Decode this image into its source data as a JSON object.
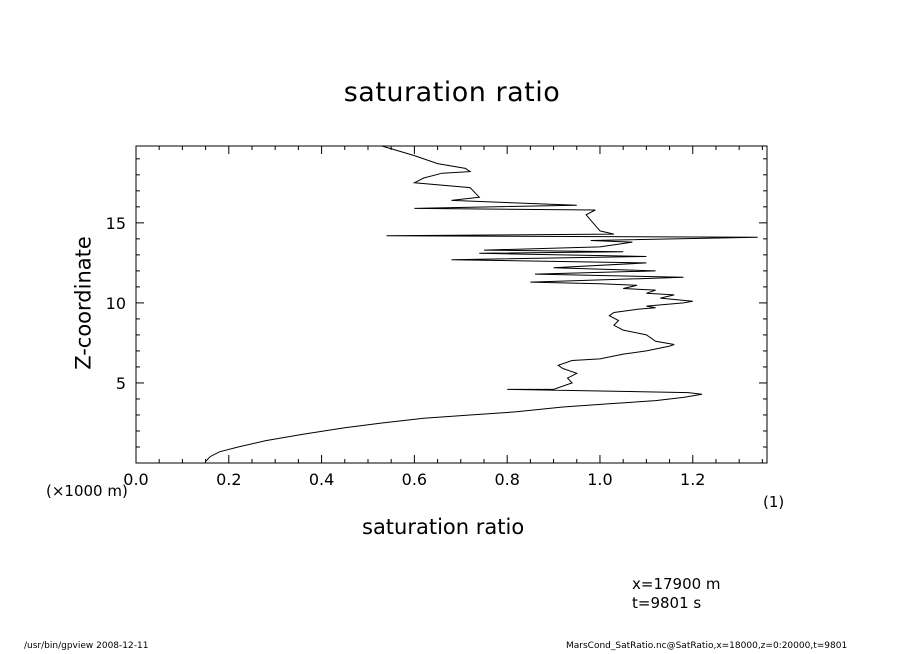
{
  "chart_data": {
    "type": "line",
    "title": "saturation ratio",
    "xlabel": "saturation ratio",
    "xunit": "(1)",
    "ylabel": "Z-coordinate",
    "yunit": "(×1000 m)",
    "xlim": [
      0.0,
      1.36
    ],
    "ylim": [
      0,
      19.8
    ],
    "xticks": [
      "0.0",
      "0.2",
      "0.4",
      "0.6",
      "0.8",
      "1.0",
      "1.2"
    ],
    "yticks": [
      "5",
      "10",
      "15"
    ],
    "grid": false,
    "series": [
      {
        "x": [
          0.15,
          0.16,
          0.18,
          0.22,
          0.28,
          0.36,
          0.45,
          0.53,
          0.62,
          0.72,
          0.82,
          0.92,
          1.02,
          1.12,
          1.18,
          1.22,
          1.19,
          0.8,
          0.9,
          0.94,
          0.93,
          0.95,
          0.92,
          0.91,
          0.94,
          1.0,
          1.05,
          1.1,
          1.15,
          1.16,
          1.12,
          1.1,
          1.05,
          1.03,
          1.04,
          1.02,
          1.03,
          1.08,
          1.12,
          1.1,
          1.14,
          1.18,
          1.2,
          1.13,
          1.16,
          1.1,
          1.12,
          1.05,
          1.08,
          1.0,
          0.85,
          1.18,
          0.86,
          1.12,
          0.9,
          1.1,
          0.68,
          1.1,
          0.74,
          1.05,
          0.75,
          1.0,
          1.07,
          0.98,
          1.34,
          0.54,
          1.03,
          1.0,
          0.97,
          0.99,
          0.6,
          0.95,
          0.68,
          0.74,
          0.72,
          0.6,
          0.62,
          0.66,
          0.72,
          0.71,
          0.65,
          0.6,
          0.53
        ],
        "y": [
          0.1,
          0.4,
          0.7,
          1.0,
          1.4,
          1.8,
          2.2,
          2.5,
          2.8,
          3.0,
          3.2,
          3.5,
          3.7,
          3.9,
          4.1,
          4.3,
          4.4,
          4.6,
          4.6,
          5.0,
          5.3,
          5.6,
          5.9,
          6.1,
          6.4,
          6.5,
          6.8,
          7.0,
          7.3,
          7.4,
          7.6,
          8.0,
          8.3,
          8.6,
          8.9,
          9.2,
          9.4,
          9.6,
          9.7,
          9.8,
          9.9,
          10.0,
          10.1,
          10.3,
          10.5,
          10.6,
          10.8,
          10.9,
          11.1,
          11.2,
          11.3,
          11.6,
          11.8,
          12.0,
          12.2,
          12.5,
          12.7,
          12.9,
          13.1,
          13.2,
          13.3,
          13.5,
          13.8,
          13.9,
          14.1,
          14.2,
          14.3,
          14.5,
          15.5,
          15.8,
          15.9,
          16.1,
          16.4,
          16.6,
          17.2,
          17.5,
          17.8,
          18.1,
          18.2,
          18.4,
          18.7,
          19.2,
          19.8
        ]
      }
    ]
  },
  "annotations": {
    "line1": "x=17900  m",
    "line2": "t=9801  s"
  },
  "footer": {
    "left": "/usr/bin/gpview   2008-12-11",
    "right": "MarsCond_SatRatio.nc@SatRatio,x=18000,z=0:20000,t=9801"
  }
}
